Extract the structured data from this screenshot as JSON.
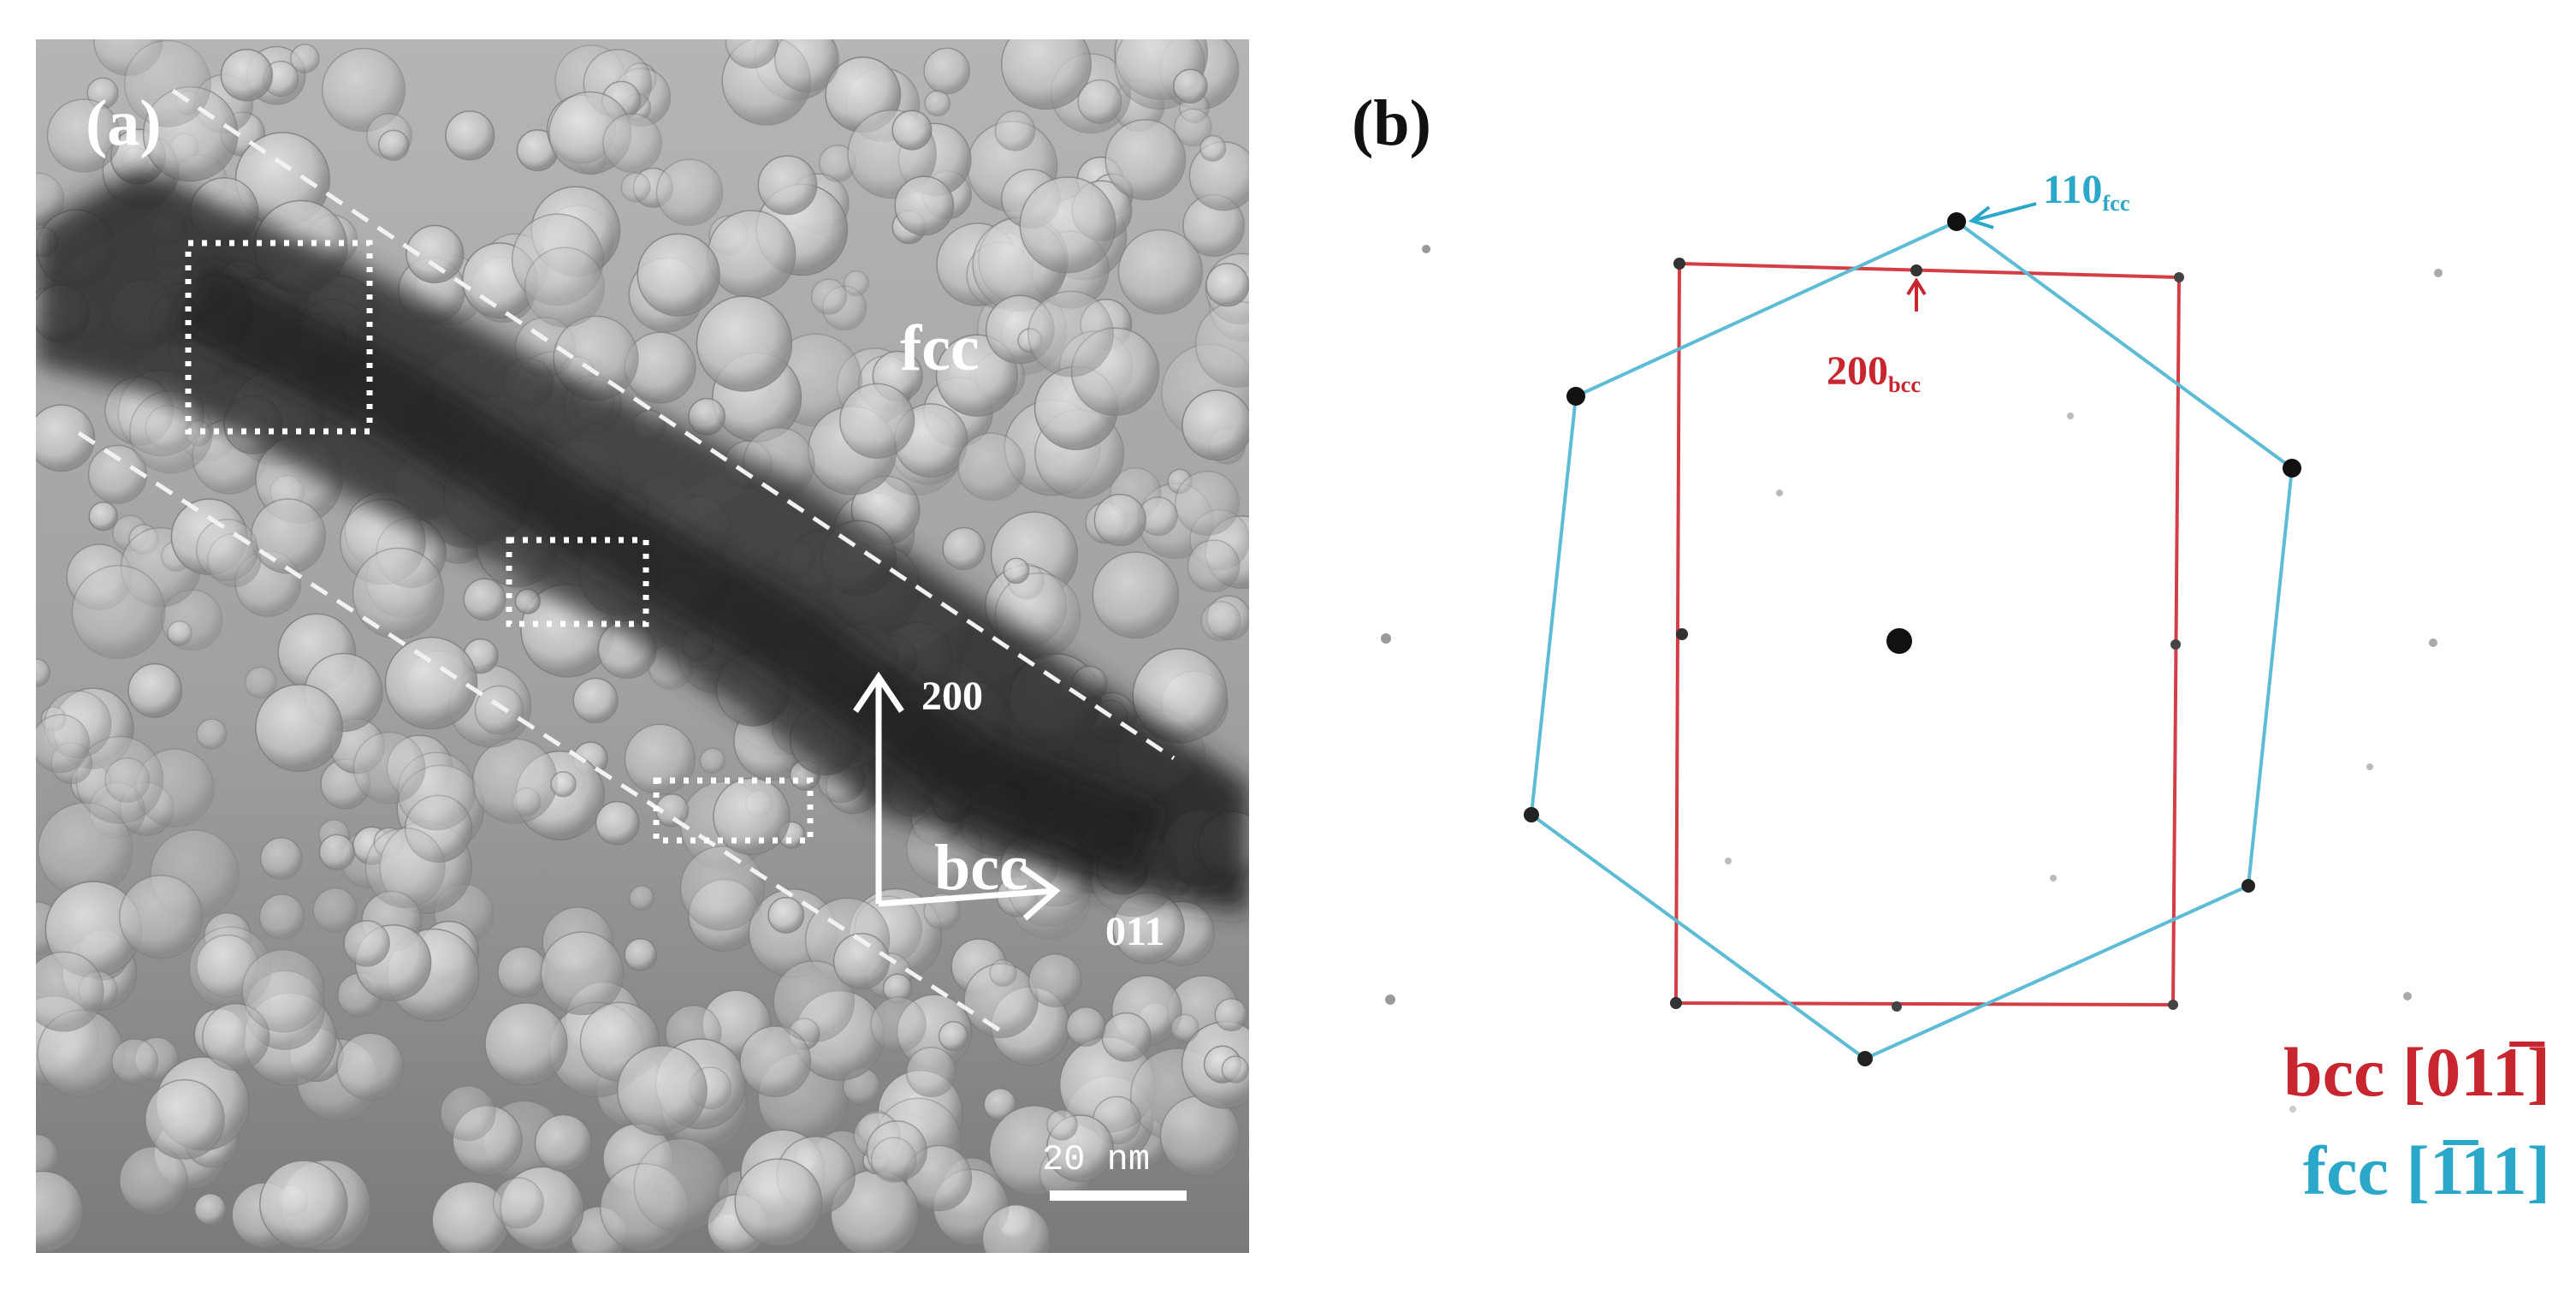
{
  "panel_a": {
    "label": "(a)",
    "phase_fcc": "fcc",
    "phase_bcc": "bcc",
    "direction_vertical": "200",
    "direction_horizontal": "011",
    "scale_bar": "20 nm"
  },
  "panel_b": {
    "label": "(b)",
    "spot_fcc_label": "110",
    "spot_fcc_sub": "fcc",
    "spot_bcc_label": "200",
    "spot_bcc_sub": "bcc",
    "legend_bcc": "bcc [011̅]",
    "legend_fcc": "fcc [1̅11]"
  },
  "colors": {
    "bcc": "#c8262f",
    "fcc": "#2aa7c9"
  }
}
